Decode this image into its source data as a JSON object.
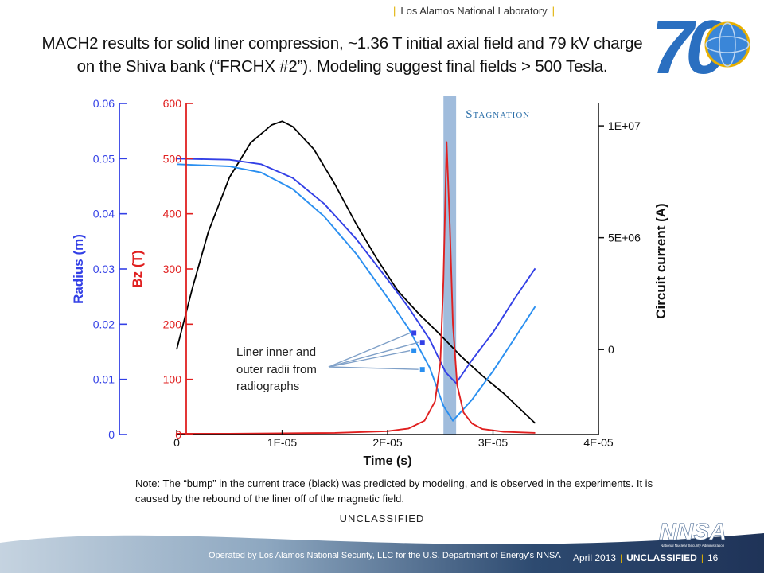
{
  "header": {
    "lab_name": "Los Alamos National Laboratory"
  },
  "title": {
    "line1": "MACH2 results for solid liner compression,  ~1.36 T  initial axial field and 79 kV charge",
    "line2": "on the Shiva bank (“FRCHX #2”). Modeling suggest final fields > 500 Tesla."
  },
  "logo": {
    "text": "70"
  },
  "chart_data": {
    "type": "line",
    "xlabel": "Time (s)",
    "x_ticks": [
      "0",
      "1E-05",
      "2E-05",
      "3E-05",
      "4E-05"
    ],
    "xlim": [
      0,
      4e-05
    ],
    "axes": {
      "radius": {
        "label": "Radius (m)",
        "ticks": [
          "0",
          "0.01",
          "0.02",
          "0.03",
          "0.04",
          "0.05",
          "0.06"
        ],
        "range": [
          0,
          0.06
        ],
        "color": "#3340e6"
      },
      "bz": {
        "label": "Bz (T)",
        "ticks": [
          "0",
          "100",
          "200",
          "300",
          "400",
          "500",
          "600"
        ],
        "range": [
          0,
          600
        ],
        "color": "#e02020"
      },
      "current": {
        "label": "Circuit current (A)",
        "ticks": [
          "0",
          "5E+06",
          "1E+07"
        ],
        "range": [
          -3800000.0,
          11000000.0
        ],
        "color": "#000000"
      }
    },
    "annotation_stagnation": "Stagnation",
    "annotation_radiographs": [
      "Liner inner and",
      "outer radii from",
      "radiographs"
    ],
    "stagnation_band": [
      2.53e-05,
      2.65e-05
    ],
    "series": [
      {
        "axis": "current",
        "color": "#000000",
        "x": [
          0,
          1.5e-06,
          3e-06,
          5e-06,
          7e-06,
          9e-06,
          1e-05,
          1.1e-05,
          1.3e-05,
          1.5e-05,
          1.7e-05,
          1.9e-05,
          2.1e-05,
          2.3e-05,
          2.5e-05,
          2.7e-05,
          2.9e-05,
          3.1e-05,
          3.4e-05
        ],
        "y": [
          0,
          2800000.0,
          5300000.0,
          7700000.0,
          9200000.0,
          10000000.0,
          10200000.0,
          10000000.0,
          9000000.0,
          7400000.0,
          5600000.0,
          4000000.0,
          2600000.0,
          1600000.0,
          700000.0,
          -300000.0,
          -1200000.0,
          -2000000.0,
          -3300000.0
        ]
      },
      {
        "axis": "radius",
        "color": "#3340e6",
        "x": [
          0,
          5e-06,
          8e-06,
          1.1e-05,
          1.4e-05,
          1.7e-05,
          2e-05,
          2.2e-05,
          2.4e-05,
          2.55e-05,
          2.65e-05,
          2.8e-05,
          3e-05,
          3.2e-05,
          3.4e-05
        ],
        "y": [
          0.05,
          0.0498,
          0.049,
          0.0465,
          0.0418,
          0.0355,
          0.0281,
          0.023,
          0.0172,
          0.0113,
          0.0093,
          0.0135,
          0.0185,
          0.0245,
          0.0301
        ]
      },
      {
        "axis": "radius",
        "color": "#2a8ff0",
        "x": [
          0,
          5e-06,
          8e-06,
          1.1e-05,
          1.4e-05,
          1.7e-05,
          2e-05,
          2.2e-05,
          2.4e-05,
          2.53e-05,
          2.62e-05,
          2.8e-05,
          3e-05,
          3.2e-05,
          3.4e-05
        ],
        "y": [
          0.049,
          0.0486,
          0.0475,
          0.0445,
          0.0395,
          0.0328,
          0.0248,
          0.0192,
          0.0121,
          0.0052,
          0.0025,
          0.0063,
          0.0115,
          0.0173,
          0.0232
        ]
      },
      {
        "axis": "bz",
        "color": "#e02020",
        "x": [
          0,
          5e-06,
          1e-05,
          1.5e-05,
          2e-05,
          2.2e-05,
          2.35e-05,
          2.45e-05,
          2.5e-05,
          2.53e-05,
          2.56e-05,
          2.59e-05,
          2.62e-05,
          2.66e-05,
          2.72e-05,
          2.8e-05,
          2.9e-05,
          3.1e-05,
          3.4e-05
        ],
        "y": [
          1.4,
          1.6,
          2.1,
          3.0,
          6,
          11,
          25,
          60,
          130,
          280,
          530,
          380,
          200,
          90,
          40,
          20,
          10,
          5,
          3
        ]
      }
    ],
    "data_points": [
      {
        "x": 2.25e-05,
        "y": 0.0184,
        "color": "#3340e6"
      },
      {
        "x": 2.33e-05,
        "y": 0.0167,
        "color": "#3340e6"
      },
      {
        "x": 2.25e-05,
        "y": 0.0152,
        "color": "#2a8ff0"
      },
      {
        "x": 2.33e-05,
        "y": 0.0118,
        "color": "#2a8ff0"
      }
    ]
  },
  "note": "Note: The “bump” in the current trace (black) was predicted by modeling, and is observed in the experiments. It is caused by the rebound of the liner off of the magnetic field.",
  "classification_mid": "UNCLASSIFIED",
  "footer": {
    "operated": "Operated by Los Alamos National Security, LLC for the U.S. Department of Energy's NNSA",
    "date": "April 2013",
    "classification": "UNCLASSIFIED",
    "page": "16",
    "nnsa": "NNSA",
    "nnsa_sub": "National Nuclear Security Administration"
  },
  "colors": {
    "accent": "#e0b000",
    "band": "#8fb0d6"
  }
}
